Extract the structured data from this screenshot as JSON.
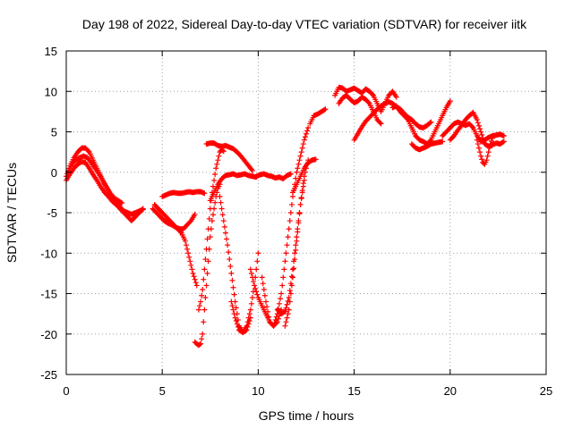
{
  "chart_data": {
    "type": "scatter",
    "title": "Day 198 of 2022, Sidereal Day-to-day VTEC variation (SDTVAR) for receiver iitk",
    "xlabel": "GPS time / hours",
    "ylabel": "SDTVAR / TECUs",
    "xlim": [
      0,
      25
    ],
    "ylim": [
      -25,
      15
    ],
    "xticks": [
      0,
      5,
      10,
      15,
      20,
      25
    ],
    "yticks": [
      15,
      10,
      5,
      0,
      -5,
      -10,
      -15,
      -20,
      -25
    ],
    "grid": true,
    "legend": "none",
    "marker": "plus",
    "color": "#ff0000",
    "series": [
      {
        "x": [
          0.0,
          0.2,
          0.4,
          0.6,
          0.8,
          1.0,
          1.2,
          1.4,
          1.6,
          1.8,
          2.0,
          2.2,
          2.4,
          2.6,
          2.8,
          3.0,
          3.2,
          3.4,
          3.6,
          3.8,
          4.0
        ],
        "y": [
          -0.5,
          0.8,
          1.8,
          2.5,
          3.0,
          3.0,
          2.5,
          1.5,
          0.5,
          -0.5,
          -1.5,
          -2.5,
          -3.2,
          -3.8,
          -4.3,
          -4.8,
          -5.0,
          -5.2,
          -5.0,
          -4.8,
          -4.6
        ]
      },
      {
        "x": [
          0.0,
          0.2,
          0.4,
          0.6,
          0.8,
          1.0,
          1.2,
          1.4,
          1.6,
          1.8,
          2.0,
          2.2,
          2.4,
          2.6,
          2.8,
          3.0,
          3.2,
          3.4,
          3.6,
          3.8,
          4.0
        ],
        "y": [
          -1.0,
          -0.2,
          0.5,
          1.0,
          1.3,
          1.2,
          0.5,
          -0.3,
          -1.0,
          -1.8,
          -2.5,
          -3.0,
          -3.6,
          -4.0,
          -4.5,
          -5.0,
          -5.5,
          -6.0,
          -5.5,
          -5.0,
          -4.5
        ]
      },
      {
        "x": [
          0.1,
          0.3,
          0.5,
          0.7,
          0.9,
          1.1,
          1.3,
          1.5,
          1.7,
          1.9,
          2.1,
          2.3,
          2.5,
          2.7,
          2.9
        ],
        "y": [
          0.0,
          1.0,
          1.5,
          1.8,
          2.0,
          1.8,
          1.2,
          0.5,
          -0.2,
          -1.0,
          -1.8,
          -2.6,
          -3.2,
          -3.5,
          -3.8
        ]
      },
      {
        "x": [
          4.5,
          4.7,
          4.9,
          5.1,
          5.3,
          5.5,
          5.7,
          5.9,
          6.1,
          6.3,
          6.5,
          6.7
        ],
        "y": [
          -4.5,
          -5.0,
          -5.5,
          -6.0,
          -6.3,
          -6.5,
          -6.8,
          -7.0,
          -7.0,
          -6.5,
          -6.0,
          -5.2
        ]
      },
      {
        "x": [
          4.6,
          4.8,
          5.0,
          5.2,
          5.4,
          5.6,
          5.8,
          6.0,
          6.2,
          6.4,
          6.6,
          6.8
        ],
        "y": [
          -4.0,
          -4.5,
          -5.0,
          -5.5,
          -6.0,
          -6.5,
          -7.0,
          -7.5,
          -8.5,
          -10.5,
          -12.5,
          -14.0
        ]
      },
      {
        "x": [
          5.0,
          5.2,
          5.4,
          5.6,
          5.8,
          6.0,
          6.2,
          6.4,
          6.6,
          6.8,
          7.0,
          7.2
        ],
        "y": [
          -3.0,
          -2.8,
          -2.6,
          -2.5,
          -2.6,
          -2.6,
          -2.5,
          -2.4,
          -2.5,
          -2.4,
          -2.4,
          -2.6
        ]
      },
      {
        "x": [
          6.7,
          6.8,
          6.9,
          7.0,
          7.1,
          7.2,
          7.3,
          7.4,
          7.5,
          7.6,
          7.7,
          7.8,
          7.9,
          8.0
        ],
        "y": [
          -21.0,
          -21.2,
          -21.4,
          -21.2,
          -20.0,
          -17.0,
          -14.0,
          -11.0,
          -8.0,
          -6.0,
          -4.5,
          -3.0,
          -2.0,
          -1.5
        ]
      },
      {
        "x": [
          6.9,
          7.0,
          7.1,
          7.2,
          7.3,
          7.4,
          7.5,
          7.6,
          7.7,
          7.8,
          7.9,
          8.0,
          8.1,
          8.2
        ],
        "y": [
          -17.0,
          -16.0,
          -14.5,
          -12.0,
          -9.5,
          -7.0,
          -4.5,
          -2.5,
          -1.0,
          0.5,
          1.5,
          2.5,
          2.8,
          2.6
        ]
      },
      {
        "x": [
          7.5,
          7.7,
          7.9,
          8.1,
          8.3,
          8.5,
          8.7,
          8.9,
          9.1,
          9.3,
          9.5,
          9.7,
          9.9
        ],
        "y": [
          -3.5,
          -2.5,
          -1.5,
          -0.8,
          -0.4,
          -0.3,
          -0.2,
          -0.4,
          -0.3,
          -0.2,
          -0.4,
          -0.5,
          -0.6
        ]
      },
      {
        "x": [
          7.3,
          7.5,
          7.7,
          7.9,
          8.1,
          8.3,
          8.5,
          8.7,
          8.9,
          9.1,
          9.3,
          9.5,
          9.7
        ],
        "y": [
          3.5,
          3.6,
          3.6,
          3.3,
          3.2,
          3.3,
          3.1,
          2.9,
          2.5,
          2.0,
          1.4,
          0.8,
          0.2
        ]
      },
      {
        "x": [
          8.0,
          8.2,
          8.4,
          8.6,
          8.8,
          9.0,
          9.2,
          9.4,
          9.6
        ],
        "y": [
          -3.0,
          -6.0,
          -9.0,
          -12.5,
          -16.0,
          -19.0,
          -19.8,
          -19.5,
          -18.0
        ]
      },
      {
        "x": [
          8.6,
          8.8,
          9.0,
          9.2,
          9.4,
          9.6,
          9.8,
          10.0
        ],
        "y": [
          -16.0,
          -18.0,
          -19.5,
          -19.8,
          -19.0,
          -17.0,
          -14.0,
          -10.0
        ]
      },
      {
        "x": [
          9.9,
          10.1,
          10.3,
          10.5,
          10.7,
          10.9,
          11.1,
          11.3,
          11.5,
          11.7
        ],
        "y": [
          -0.5,
          -0.3,
          -0.2,
          -0.4,
          -0.5,
          -0.7,
          -0.6,
          -0.8,
          -0.4,
          -0.2
        ]
      },
      {
        "x": [
          9.6,
          9.8,
          10.0,
          10.2,
          10.4,
          10.6,
          10.8,
          11.0,
          11.2
        ],
        "y": [
          -12.0,
          -14.0,
          -15.5,
          -16.5,
          -17.5,
          -18.5,
          -19.0,
          -18.5,
          -17.0
        ]
      },
      {
        "x": [
          10.2,
          10.4,
          10.6,
          10.8,
          11.0,
          11.2,
          11.4,
          11.6,
          11.8,
          12.0,
          12.2,
          12.4,
          12.6
        ],
        "y": [
          -13.0,
          -16.0,
          -18.5,
          -19.0,
          -17.5,
          -15.0,
          -11.0,
          -7.0,
          -3.0,
          0.0,
          2.0,
          4.0,
          5.5
        ]
      },
      {
        "x": [
          11.0,
          11.2,
          11.4,
          11.6,
          11.8,
          12.0,
          12.2,
          12.4
        ],
        "y": [
          -17.0,
          -17.5,
          -17.2,
          -15.5,
          -12.0,
          -8.0,
          -4.0,
          -1.0
        ]
      },
      {
        "x": [
          11.4,
          11.6,
          11.8,
          12.0,
          12.2,
          12.4,
          12.6
        ],
        "y": [
          -19.0,
          -17.0,
          -13.0,
          -8.5,
          -4.0,
          -0.5,
          1.5
        ]
      },
      {
        "x": [
          11.8,
          12.0,
          12.2,
          12.4,
          12.6,
          12.8,
          13.0
        ],
        "y": [
          -2.5,
          -1.5,
          -0.5,
          0.5,
          1.2,
          1.5,
          1.6
        ]
      },
      {
        "x": [
          12.7,
          12.9,
          13.1,
          13.3,
          13.5
        ],
        "y": [
          6.0,
          7.0,
          7.2,
          7.5,
          7.8
        ]
      },
      {
        "x": [
          14.0,
          14.2,
          14.4,
          14.6,
          14.8,
          15.0,
          15.2,
          15.4,
          15.6,
          15.8,
          16.0,
          16.2,
          16.4,
          16.6,
          16.8,
          17.0,
          17.2
        ],
        "y": [
          9.5,
          10.5,
          10.4,
          10.0,
          10.2,
          10.4,
          10.1,
          9.8,
          10.3,
          10.0,
          9.5,
          8.5,
          7.5,
          8.5,
          9.5,
          10.0,
          9.3
        ]
      },
      {
        "x": [
          14.2,
          14.4,
          14.6,
          14.8,
          15.0,
          15.2,
          15.4,
          15.6,
          15.8,
          16.0,
          16.2,
          16.4
        ],
        "y": [
          8.5,
          9.2,
          9.5,
          9.0,
          8.6,
          8.8,
          9.3,
          9.0,
          8.5,
          7.5,
          6.5,
          6.0
        ]
      },
      {
        "x": [
          15.0,
          15.2,
          15.4,
          15.6,
          15.8,
          16.0,
          16.2,
          16.4,
          16.6,
          16.8,
          17.0,
          17.2,
          17.4,
          17.6,
          17.8,
          18.0,
          18.2,
          18.4,
          18.6,
          18.8,
          19.0
        ],
        "y": [
          4.0,
          4.8,
          5.6,
          6.3,
          6.8,
          7.3,
          7.8,
          8.2,
          8.5,
          8.7,
          8.5,
          8.1,
          7.8,
          7.3,
          6.8,
          6.5,
          6.0,
          5.6,
          5.5,
          5.8,
          6.2
        ]
      },
      {
        "x": [
          17.0,
          17.2,
          17.4,
          17.6,
          17.8,
          18.0,
          18.2,
          18.4,
          18.6,
          18.8,
          19.0,
          19.2,
          19.4,
          19.6,
          19.8,
          20.0
        ],
        "y": [
          8.0,
          8.2,
          7.5,
          7.0,
          6.5,
          5.5,
          4.5,
          4.0,
          3.8,
          3.5,
          4.0,
          5.0,
          6.0,
          7.0,
          8.0,
          8.8
        ]
      },
      {
        "x": [
          18.0,
          18.2,
          18.4,
          18.6,
          18.8,
          19.0,
          19.2,
          19.4,
          19.6
        ],
        "y": [
          3.5,
          3.0,
          2.8,
          3.0,
          3.2,
          3.5,
          3.6,
          3.7,
          3.8
        ]
      },
      {
        "x": [
          19.6,
          19.8,
          20.0,
          20.2,
          20.4,
          20.6,
          20.8,
          21.0,
          21.2,
          21.4,
          21.6,
          21.8,
          22.0,
          22.2,
          22.4,
          22.6,
          22.8
        ],
        "y": [
          4.5,
          5.0,
          5.5,
          6.0,
          6.2,
          6.0,
          5.8,
          6.0,
          5.5,
          4.5,
          3.8,
          4.0,
          4.3,
          4.5,
          4.6,
          4.7,
          4.5
        ]
      },
      {
        "x": [
          20.0,
          20.2,
          20.4,
          20.6,
          20.8,
          21.0,
          21.2,
          21.4,
          21.6,
          21.8,
          22.0,
          22.2,
          22.4,
          22.6,
          22.8
        ],
        "y": [
          4.0,
          4.5,
          5.2,
          5.8,
          6.5,
          7.0,
          7.4,
          6.5,
          5.0,
          3.5,
          3.2,
          3.4,
          3.6,
          3.5,
          3.8
        ]
      },
      {
        "x": [
          21.4,
          21.5,
          21.6,
          21.7,
          21.8,
          21.9,
          22.0,
          22.1,
          22.2
        ],
        "y": [
          4.0,
          3.0,
          2.0,
          1.2,
          1.0,
          1.5,
          2.5,
          3.5,
          4.2
        ]
      }
    ]
  }
}
